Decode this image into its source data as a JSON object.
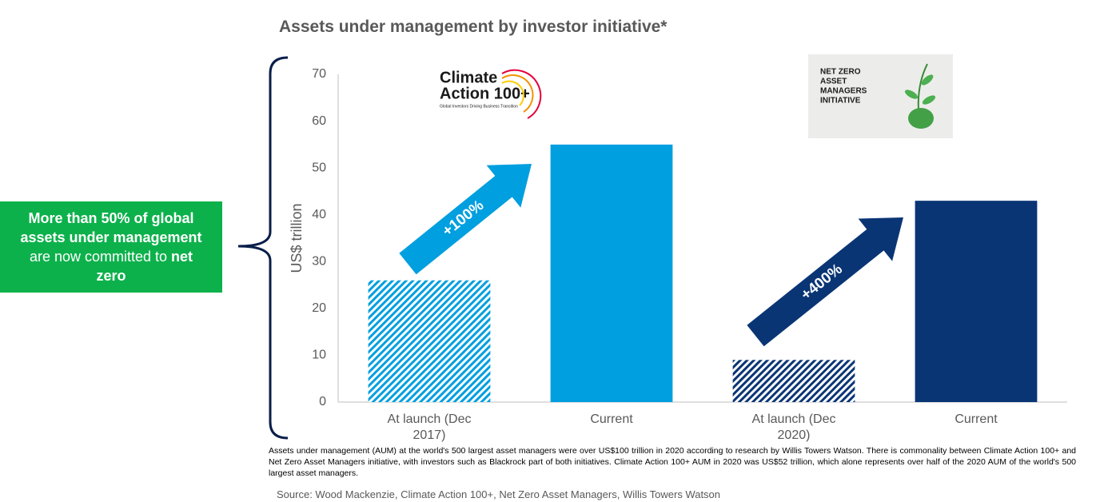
{
  "chart_data": {
    "type": "bar",
    "title": "Assets under management by investor initiative*",
    "y_label": "US$ trillion",
    "categories": [
      "At launch (Dec 2017)",
      "Current",
      "At launch (Dec 2020)",
      "Current"
    ],
    "values": [
      26,
      55,
      9,
      43
    ],
    "colors": [
      "#009fdf",
      "#009fdf",
      "#0a3575",
      "#0a3575"
    ],
    "hatched": [
      true,
      false,
      true,
      false
    ],
    "ylim": [
      0,
      70
    ],
    "yticks": [
      0,
      10,
      20,
      30,
      40,
      50,
      60,
      70
    ],
    "grid": false,
    "annotations": [
      "+100%",
      "+400%"
    ],
    "callout": [
      "More than 50% of global assets under management",
      "are now committed to",
      "net zero"
    ],
    "logos": {
      "climate_action": [
        "Climate",
        "Action 100+"
      ],
      "climate_action_tagline": "Global Investors Driving Business Transition",
      "nzam": [
        "NET ZERO",
        "ASSET",
        "MANAGERS",
        "INITIATIVE"
      ]
    },
    "footnote": "Assets under management (AUM) at the world's 500 largest asset managers were over US$100 trillion in 2020 according to research by Willis Towers Watson. There is commonality between Climate Action 100+ and Net Zero Asset Managers initiative, with investors such as Blackrock part of both initiatives. Climate Action 100+  AUM in 2020 was US$52 trillion, which alone represents over half of the 2020 AUM of the world's 500 largest asset managers.",
    "source": "Source: Wood Mackenzie, Climate Action 100+, Net Zero Asset Managers, Willis Towers Watson"
  }
}
